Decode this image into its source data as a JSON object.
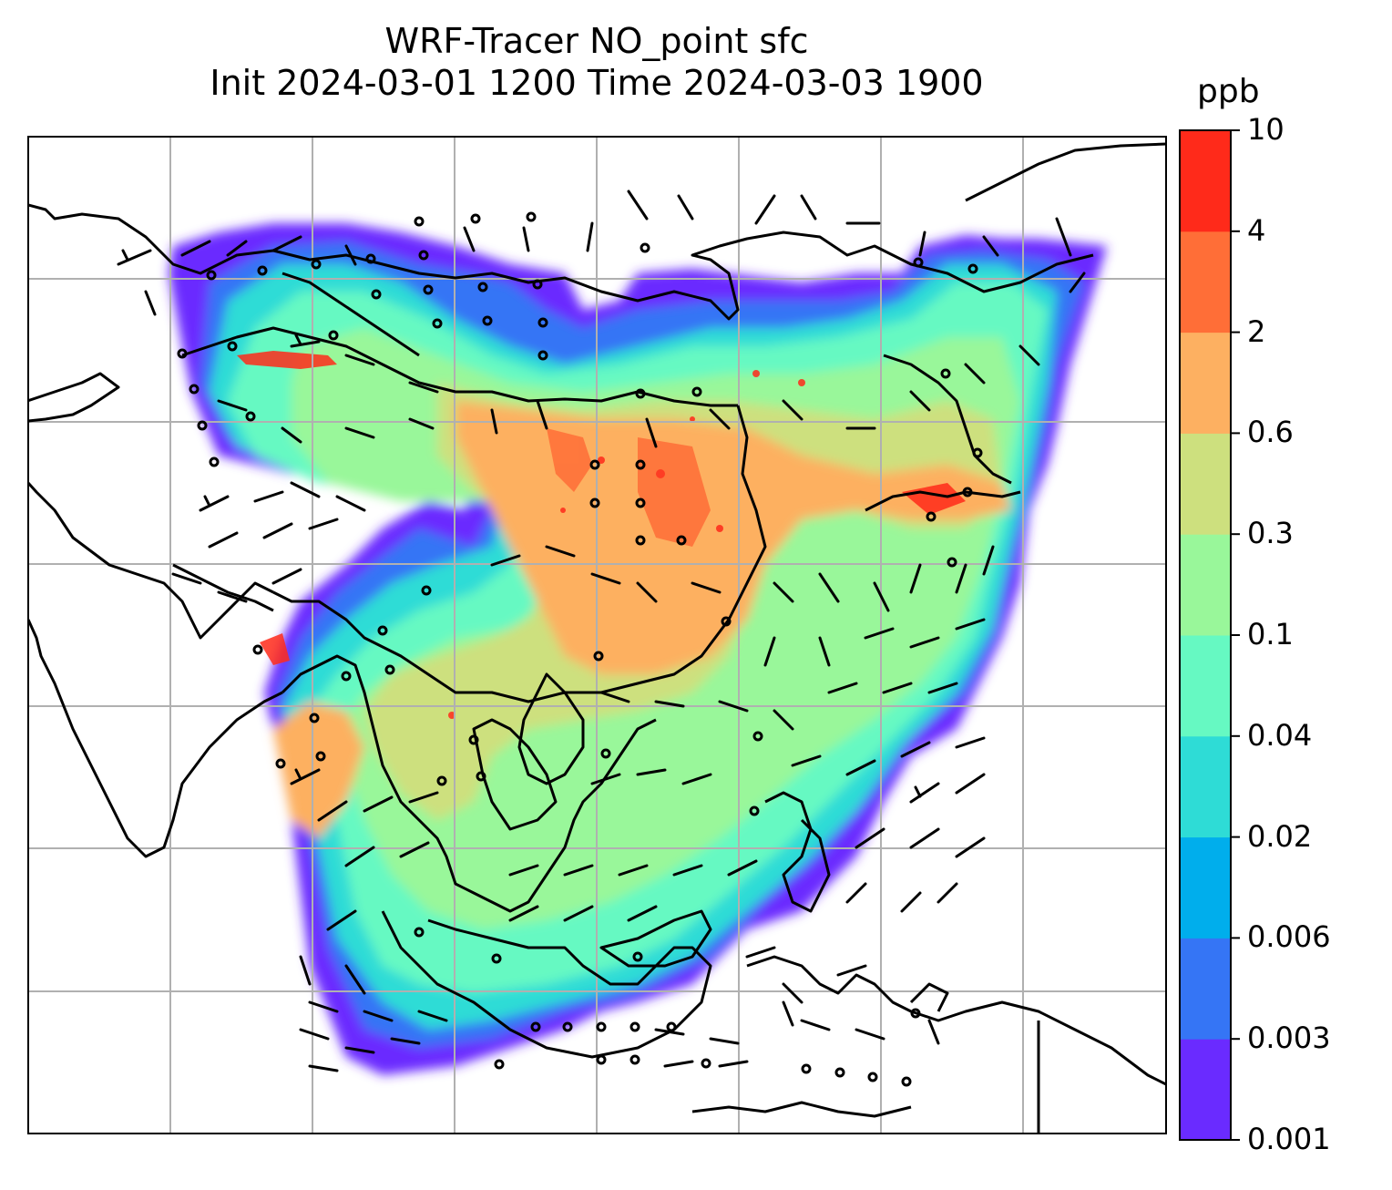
{
  "title": {
    "line1": "WRF-Tracer NO_point sfc",
    "line2": "Init 2024-03-01 1200 Time 2024-03-03 1900"
  },
  "colorbar": {
    "unit": "ppb",
    "levels": [
      "0.001",
      "0.003",
      "0.006",
      "0.02",
      "0.04",
      "0.1",
      "0.3",
      "0.6",
      "2",
      "4",
      "10"
    ],
    "colors": [
      "#6a2bff",
      "#3575f5",
      "#00aeec",
      "#2edcd6",
      "#66f9c2",
      "#99f79a",
      "#cde07e",
      "#fdb061",
      "#ff6e37",
      "#ff2a1a"
    ]
  },
  "map": {
    "ocean_color": "#ffffff",
    "coastline_color": "#000000",
    "gridline_color": "#b0b0b0",
    "wind_barbs": "black barbs over domain; open circles mark calm winds"
  }
}
